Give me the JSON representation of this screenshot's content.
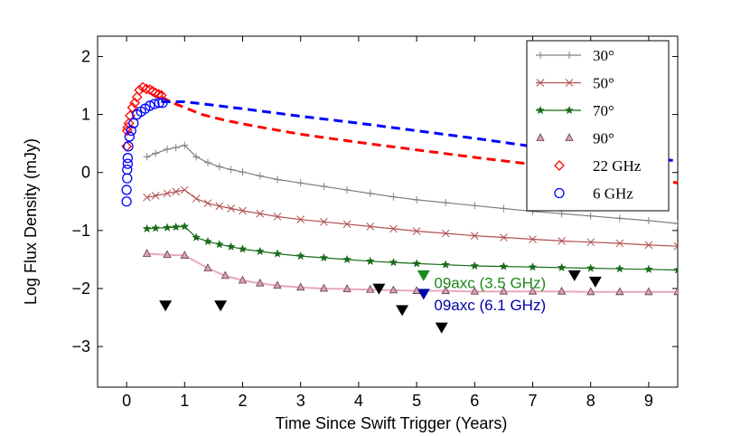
{
  "chart_data": {
    "type": "line",
    "xlabel": "Time Since Swift Trigger (Years)",
    "ylabel": "Log Flux Density (mJy)",
    "xlim": [
      -0.5,
      9.5
    ],
    "ylim": [
      -3.7,
      2.35
    ],
    "xticks": [
      0,
      1,
      2,
      3,
      4,
      5,
      6,
      7,
      8,
      9
    ],
    "yticks": [
      -3,
      -2,
      -1,
      0,
      1,
      2
    ],
    "grid": false,
    "legend_position": "top-right",
    "legend": [
      {
        "label": "30°",
        "color": "#808080",
        "marker": "plus"
      },
      {
        "label": "50°",
        "color": "#b05050",
        "marker": "cross"
      },
      {
        "label": "70°",
        "color": "#1a6b1a",
        "marker": "star"
      },
      {
        "label": "90°",
        "color": "#e8a8b8",
        "marker": "triangle"
      },
      {
        "label": "22 GHz",
        "color": "#ff0000",
        "marker": "diamond"
      },
      {
        "label": "6 GHz",
        "color": "#0000ff",
        "marker": "circle"
      }
    ],
    "series": [
      {
        "name": "30°",
        "color": "#808080",
        "marker": "plus",
        "x": [
          0.35,
          0.5,
          0.7,
          0.85,
          1.0,
          1.2,
          1.4,
          1.6,
          1.8,
          2.0,
          2.3,
          2.6,
          3.0,
          3.4,
          3.8,
          4.2,
          4.6,
          5.0,
          5.5,
          6.0,
          6.5,
          7.0,
          7.5,
          8.0,
          8.5,
          9.0,
          9.5
        ],
        "y": [
          0.27,
          0.33,
          0.4,
          0.43,
          0.47,
          0.27,
          0.17,
          0.1,
          0.05,
          0.01,
          -0.06,
          -0.12,
          -0.18,
          -0.24,
          -0.3,
          -0.36,
          -0.42,
          -0.47,
          -0.52,
          -0.57,
          -0.62,
          -0.67,
          -0.71,
          -0.75,
          -0.79,
          -0.83,
          -0.88
        ]
      },
      {
        "name": "50°",
        "color": "#b05050",
        "marker": "cross",
        "x": [
          0.35,
          0.5,
          0.7,
          0.85,
          1.0,
          1.2,
          1.4,
          1.6,
          1.8,
          2.0,
          2.3,
          2.6,
          3.0,
          3.4,
          3.8,
          4.2,
          4.6,
          5.0,
          5.5,
          6.0,
          6.5,
          7.0,
          7.5,
          8.0,
          8.5,
          9.0,
          9.5
        ],
        "y": [
          -0.43,
          -0.4,
          -0.36,
          -0.33,
          -0.3,
          -0.45,
          -0.53,
          -0.58,
          -0.62,
          -0.66,
          -0.71,
          -0.76,
          -0.81,
          -0.85,
          -0.89,
          -0.93,
          -0.97,
          -1.01,
          -1.05,
          -1.09,
          -1.12,
          -1.15,
          -1.18,
          -1.2,
          -1.22,
          -1.25,
          -1.27
        ]
      },
      {
        "name": "70°",
        "color": "#1a6b1a",
        "marker": "star",
        "x": [
          0.35,
          0.5,
          0.7,
          0.85,
          1.0,
          1.2,
          1.4,
          1.6,
          1.8,
          2.0,
          2.3,
          2.6,
          3.0,
          3.4,
          3.8,
          4.2,
          4.6,
          5.0,
          5.5,
          6.0,
          6.5,
          7.0,
          7.5,
          8.0,
          8.5,
          9.0,
          9.5
        ],
        "y": [
          -0.97,
          -0.96,
          -0.95,
          -0.94,
          -0.93,
          -1.12,
          -1.19,
          -1.24,
          -1.28,
          -1.32,
          -1.36,
          -1.4,
          -1.44,
          -1.47,
          -1.5,
          -1.53,
          -1.55,
          -1.57,
          -1.59,
          -1.61,
          -1.62,
          -1.63,
          -1.64,
          -1.65,
          -1.66,
          -1.67,
          -1.68
        ]
      },
      {
        "name": "90°",
        "color": "#e8a8b8",
        "marker": "triangle",
        "x": [
          0.35,
          0.7,
          1.0,
          1.4,
          1.7,
          2.0,
          2.3,
          2.6,
          3.0,
          3.4,
          3.8,
          4.2,
          4.6,
          5.0,
          5.5,
          6.0,
          6.5,
          7.0,
          7.5,
          8.0,
          8.5,
          9.0,
          9.5
        ],
        "y": [
          -1.4,
          -1.42,
          -1.43,
          -1.65,
          -1.78,
          -1.86,
          -1.91,
          -1.95,
          -1.98,
          -2.0,
          -2.01,
          -2.02,
          -2.03,
          -2.04,
          -2.04,
          -2.05,
          -2.05,
          -2.05,
          -2.05,
          -2.06,
          -2.06,
          -2.06,
          -2.06
        ]
      },
      {
        "name": "22 GHz",
        "color": "#ff0000",
        "marker": "diamond",
        "line": "none",
        "x": [
          0.0,
          0.01,
          0.02,
          0.04,
          0.06,
          0.1,
          0.14,
          0.18,
          0.22,
          0.28,
          0.34,
          0.4,
          0.45,
          0.5,
          0.55,
          0.6
        ],
        "y": [
          0.45,
          0.72,
          0.78,
          0.85,
          0.98,
          1.12,
          1.2,
          1.3,
          1.42,
          1.47,
          1.44,
          1.43,
          1.4,
          1.37,
          1.35,
          1.33
        ]
      },
      {
        "name": "6 GHz",
        "color": "#0000ff",
        "marker": "circle",
        "line": "none",
        "x": [
          0.0,
          0.0,
          0.01,
          0.01,
          0.02,
          0.02,
          0.03,
          0.05,
          0.08,
          0.12,
          0.18,
          0.25,
          0.32,
          0.4,
          0.48,
          0.56,
          0.62
        ],
        "y": [
          -0.5,
          -0.3,
          -0.1,
          0.05,
          0.15,
          0.25,
          0.45,
          0.62,
          0.72,
          0.85,
          1.0,
          1.05,
          1.1,
          1.15,
          1.18,
          1.2,
          1.2
        ]
      }
    ],
    "projections": [
      {
        "color": "#ff0000",
        "style": "dashed",
        "x": [
          0.6,
          0.8,
          1.0,
          1.3,
          1.7,
          2.2,
          3.0,
          4.0,
          5.0,
          6.0,
          7.0,
          8.0,
          9.0,
          9.5
        ],
        "y": [
          1.3,
          1.2,
          1.12,
          1.0,
          0.9,
          0.8,
          0.66,
          0.52,
          0.39,
          0.26,
          0.14,
          0.03,
          -0.09,
          -0.18
        ]
      },
      {
        "color": "#0000ff",
        "style": "dashed",
        "x": [
          0.6,
          1.0,
          1.5,
          2.0,
          3.0,
          4.0,
          5.0,
          6.0,
          7.0,
          8.0,
          9.0,
          9.5
        ],
        "y": [
          1.22,
          1.22,
          1.16,
          1.1,
          0.97,
          0.85,
          0.72,
          0.59,
          0.45,
          0.35,
          0.25,
          0.2
        ]
      }
    ],
    "upper_limits": {
      "black": {
        "x": [
          0.67,
          1.62,
          4.35,
          4.75,
          5.43,
          7.72,
          8.08
        ],
        "y": [
          -2.3,
          -2.3,
          -2.01,
          -2.38,
          -2.68,
          -1.78,
          -1.89
        ]
      },
      "green": {
        "x": 5.12,
        "y": -1.78,
        "color": "#1a8a1a"
      },
      "blue": {
        "x": 5.12,
        "y": -2.1,
        "color": "#0000aa"
      }
    },
    "annotations": [
      {
        "text": "09axc (3.5 GHz)",
        "x": 5.3,
        "y": -1.9,
        "color": "#1a8a1a"
      },
      {
        "text": "09axc (6.1 GHz)",
        "x": 5.3,
        "y": -2.28,
        "color": "#0000aa"
      }
    ]
  }
}
